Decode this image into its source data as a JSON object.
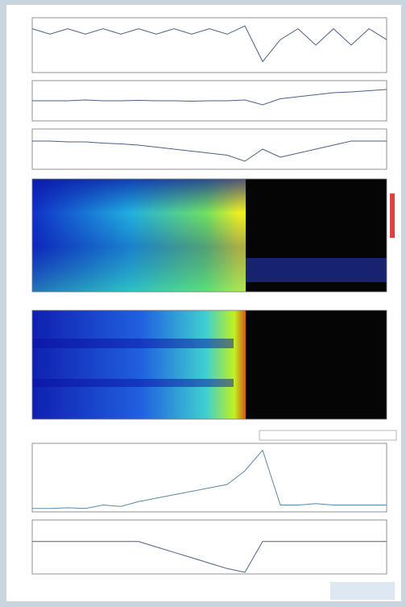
{
  "chart_data": [
    {
      "type": "line",
      "x": [
        0,
        5,
        10,
        15,
        20,
        25,
        30,
        35,
        40,
        45,
        50,
        55,
        60,
        65,
        70,
        75,
        80,
        85,
        90,
        95,
        100
      ],
      "values": [
        8,
        7,
        8,
        7,
        8,
        7,
        8,
        7,
        8,
        7,
        8,
        7,
        8.5,
        2,
        6,
        8,
        5,
        8,
        5,
        8,
        6
      ],
      "color": "#4a5f86",
      "xlim": [
        0,
        100
      ],
      "ylim": [
        0,
        10
      ]
    },
    {
      "type": "line",
      "x": [
        0,
        5,
        10,
        15,
        20,
        25,
        30,
        35,
        40,
        45,
        50,
        55,
        60,
        65,
        70,
        75,
        80,
        85,
        90,
        95,
        100
      ],
      "values": [
        5,
        5,
        5,
        5.2,
        5,
        5,
        5.1,
        5,
        5,
        4.9,
        5,
        5,
        5.2,
        4,
        5.5,
        6,
        6.5,
        7,
        7.2,
        7.5,
        7.8
      ],
      "color": "#4a5f86",
      "xlim": [
        0,
        100
      ],
      "ylim": [
        0,
        10
      ]
    },
    {
      "type": "line",
      "x": [
        0,
        5,
        10,
        15,
        20,
        25,
        30,
        35,
        40,
        45,
        50,
        55,
        60,
        65,
        70,
        75,
        80,
        85,
        90,
        95,
        100
      ],
      "values": [
        7,
        7,
        6.8,
        6.8,
        6.5,
        6.3,
        6,
        5.5,
        5,
        4.5,
        4,
        3.5,
        2,
        5,
        3,
        4,
        5,
        6,
        7,
        7,
        7
      ],
      "color": "#4a5f86",
      "xlim": [
        0,
        100
      ],
      "ylim": [
        0,
        10
      ]
    },
    {
      "type": "line",
      "x": [
        0,
        5,
        10,
        15,
        20,
        25,
        30,
        35,
        40,
        45,
        50,
        55,
        60,
        65,
        70,
        75,
        80,
        85,
        90,
        95,
        100
      ],
      "values": [
        0.5,
        0.5,
        0.6,
        0.5,
        1,
        0.8,
        1.5,
        2,
        2.5,
        3,
        3.5,
        4,
        6,
        9,
        1,
        1,
        1.2,
        1,
        1,
        1,
        1
      ],
      "color": "#5a86a8",
      "xlim": [
        0,
        100
      ],
      "ylim": [
        0,
        10
      ]
    },
    {
      "type": "line",
      "x": [
        0,
        5,
        10,
        15,
        20,
        25,
        30,
        35,
        40,
        45,
        50,
        55,
        60,
        65,
        70,
        75,
        80,
        85,
        90,
        95,
        100
      ],
      "values": [
        6,
        6,
        6,
        6,
        6,
        6,
        6,
        5,
        4,
        3,
        2,
        1,
        0.3,
        6,
        6,
        6,
        6,
        6,
        6,
        6,
        6
      ],
      "color": "#4a5f86",
      "xlim": [
        0,
        100
      ],
      "ylim": [
        0,
        10
      ]
    }
  ]
}
